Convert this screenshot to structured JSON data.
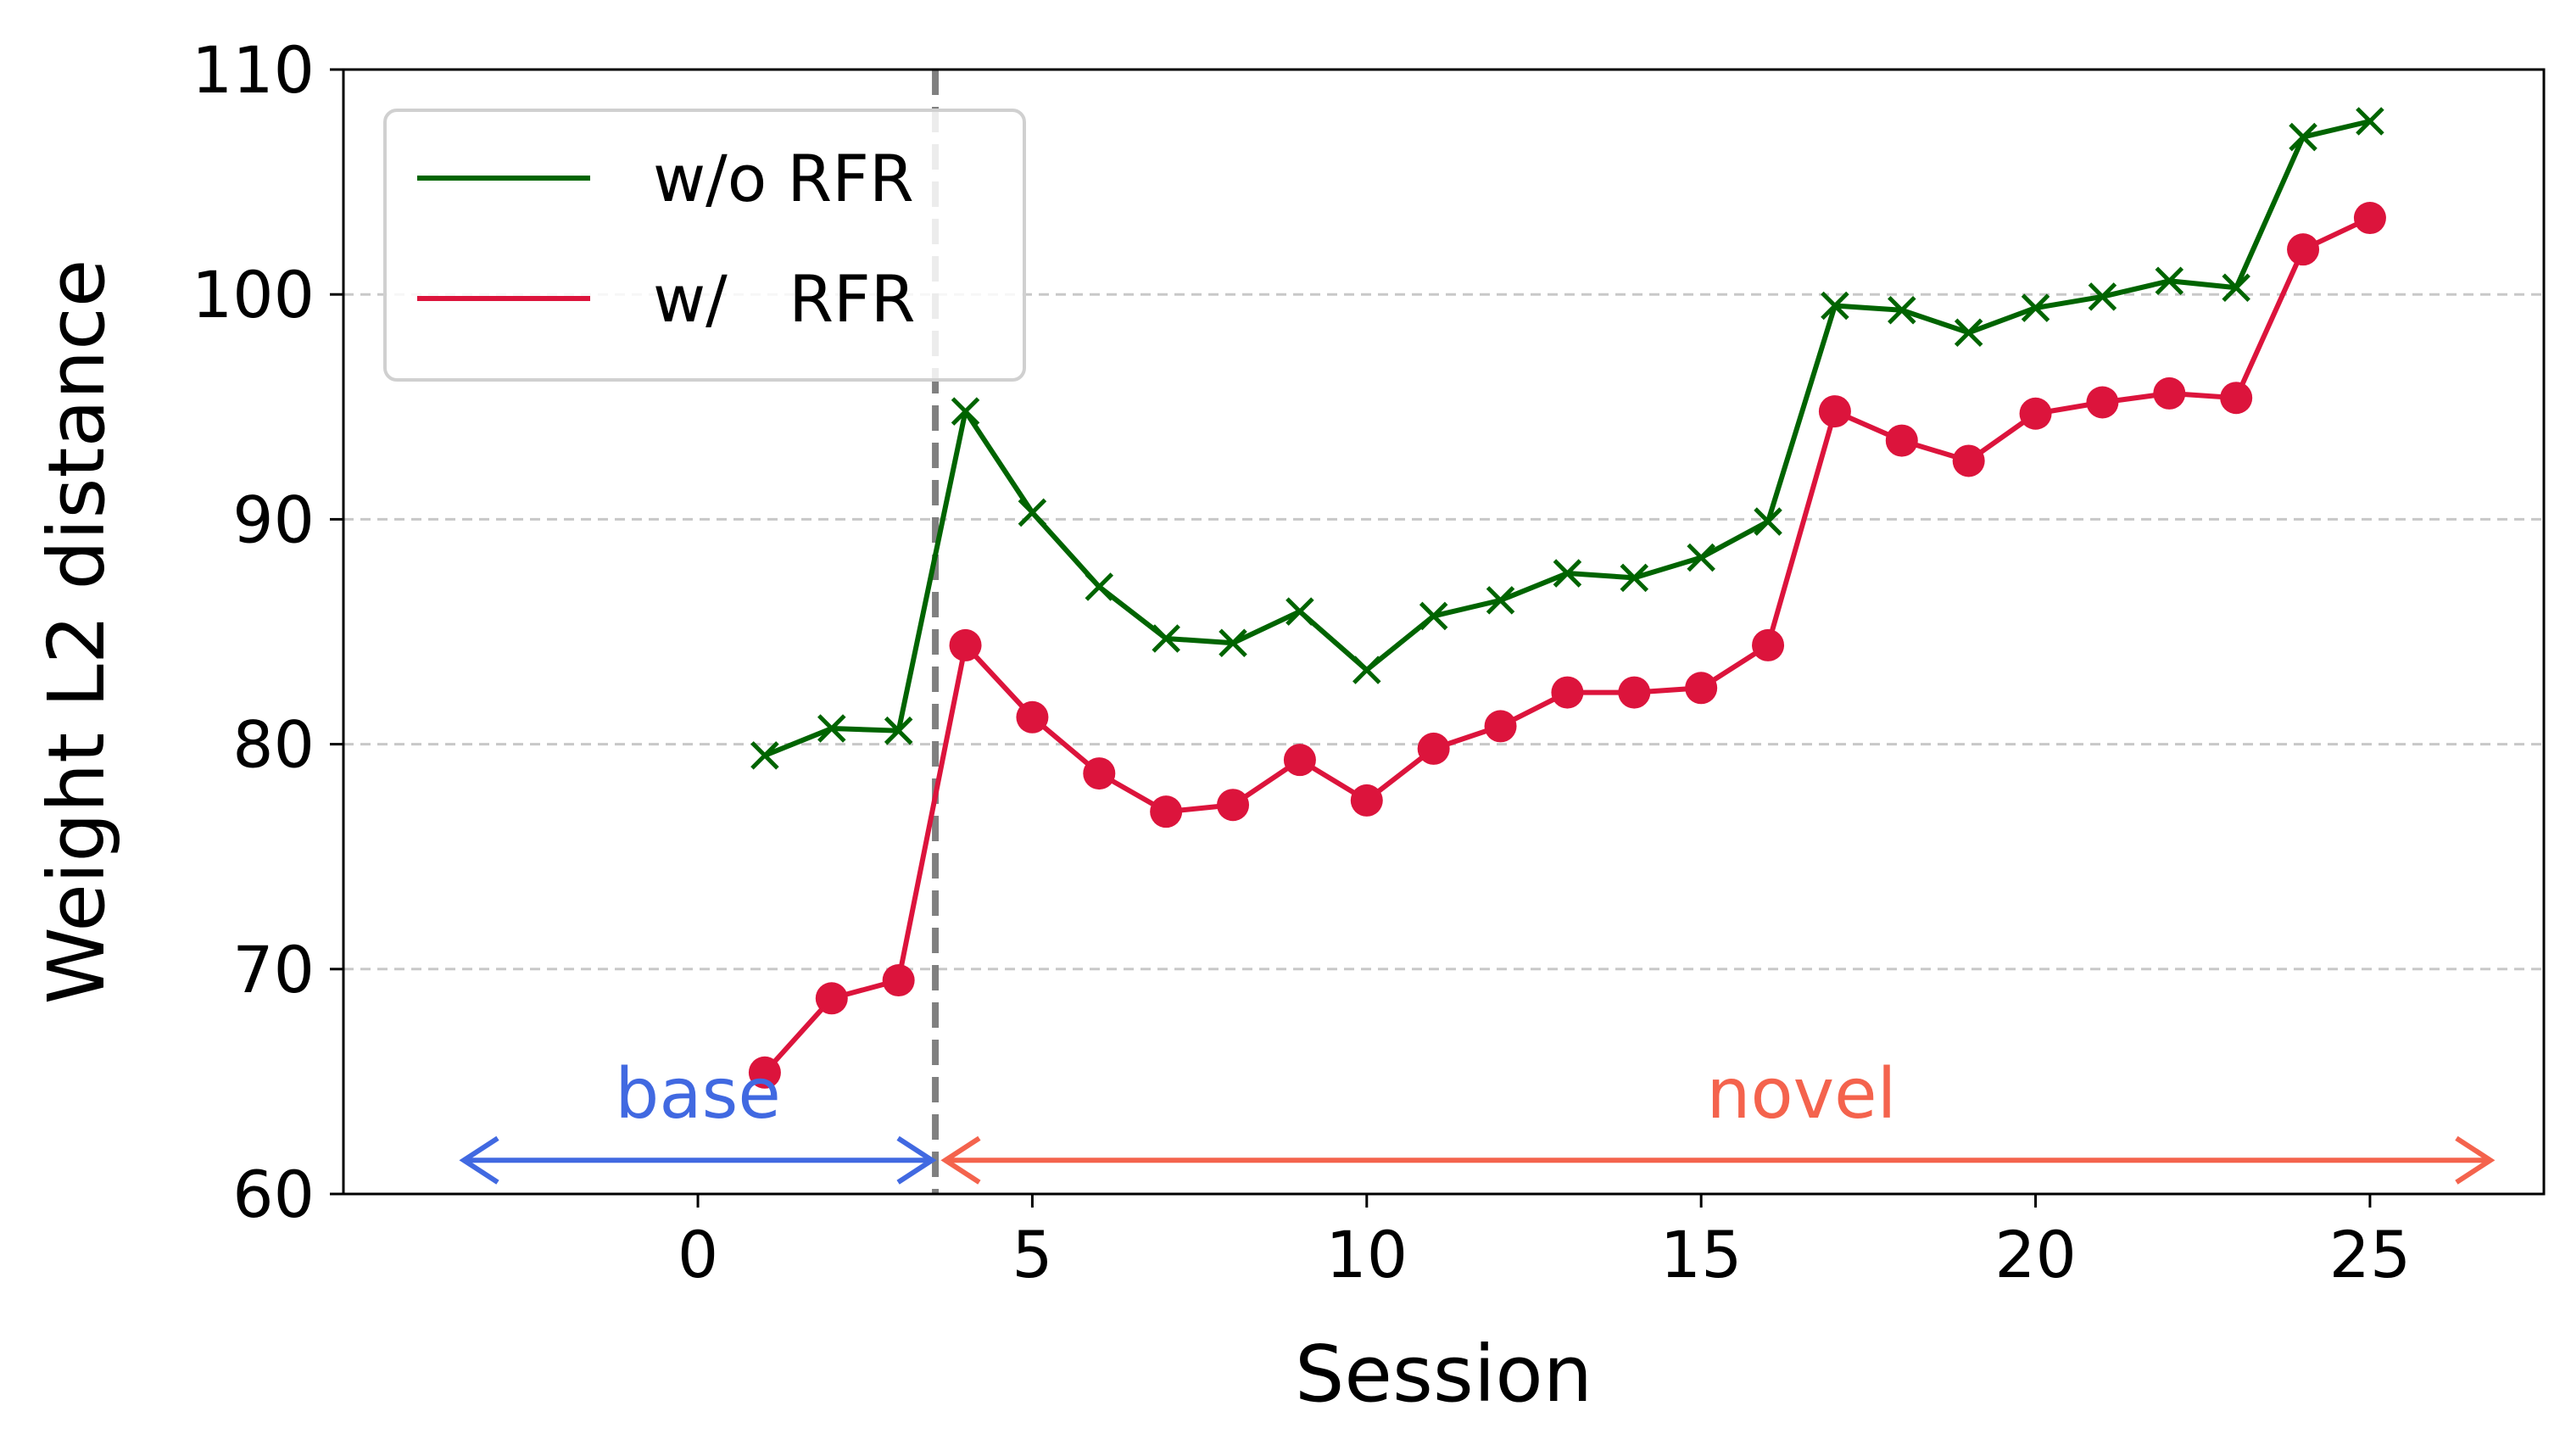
{
  "chart_data": {
    "type": "line",
    "xlabel": "Session",
    "ylabel": "Weight L2 distance",
    "xlim": [
      -5.3,
      27.6
    ],
    "ylim": [
      60,
      110
    ],
    "xticks": [
      0,
      5,
      10,
      15,
      20,
      25
    ],
    "yticks": [
      60,
      70,
      80,
      90,
      100,
      110
    ],
    "grid": "horizontal dashed",
    "legend_position": "upper-left",
    "x": [
      1,
      2,
      3,
      4,
      5,
      6,
      7,
      8,
      9,
      10,
      11,
      12,
      13,
      14,
      15,
      16,
      17,
      18,
      19,
      20,
      21,
      22,
      23,
      24,
      25
    ],
    "series": [
      {
        "name": "w/o RFR",
        "legend_label": "w/o RFR",
        "color": "#006400",
        "marker": "x",
        "values": [
          79.5,
          80.7,
          80.6,
          94.8,
          90.3,
          87.0,
          84.7,
          84.5,
          85.9,
          83.3,
          85.7,
          86.4,
          87.6,
          87.4,
          88.3,
          89.9,
          99.5,
          99.3,
          98.3,
          99.4,
          99.9,
          100.6,
          100.3,
          107.0,
          107.7
        ]
      },
      {
        "name": "w/ RFR",
        "legend_label": "w/   RFR",
        "color": "#DC143C",
        "marker": "o",
        "values": [
          65.4,
          68.7,
          69.5,
          84.4,
          81.2,
          78.7,
          77.0,
          77.3,
          79.3,
          77.5,
          79.8,
          80.8,
          82.3,
          82.3,
          82.5,
          84.4,
          94.8,
          93.5,
          92.6,
          94.7,
          95.2,
          95.6,
          95.4,
          102.0,
          103.4
        ]
      }
    ],
    "divider_x": 3.55,
    "annotations": [
      {
        "text": "base",
        "color": "#4169E1",
        "x_from": -3.5,
        "x_to": 3.5,
        "y": 61.5,
        "label_x": 0
      },
      {
        "text": "novel",
        "color": "#F4634D",
        "x_from": 3.7,
        "x_to": 26.8,
        "y": 61.5,
        "label_x": 16.5
      }
    ]
  }
}
